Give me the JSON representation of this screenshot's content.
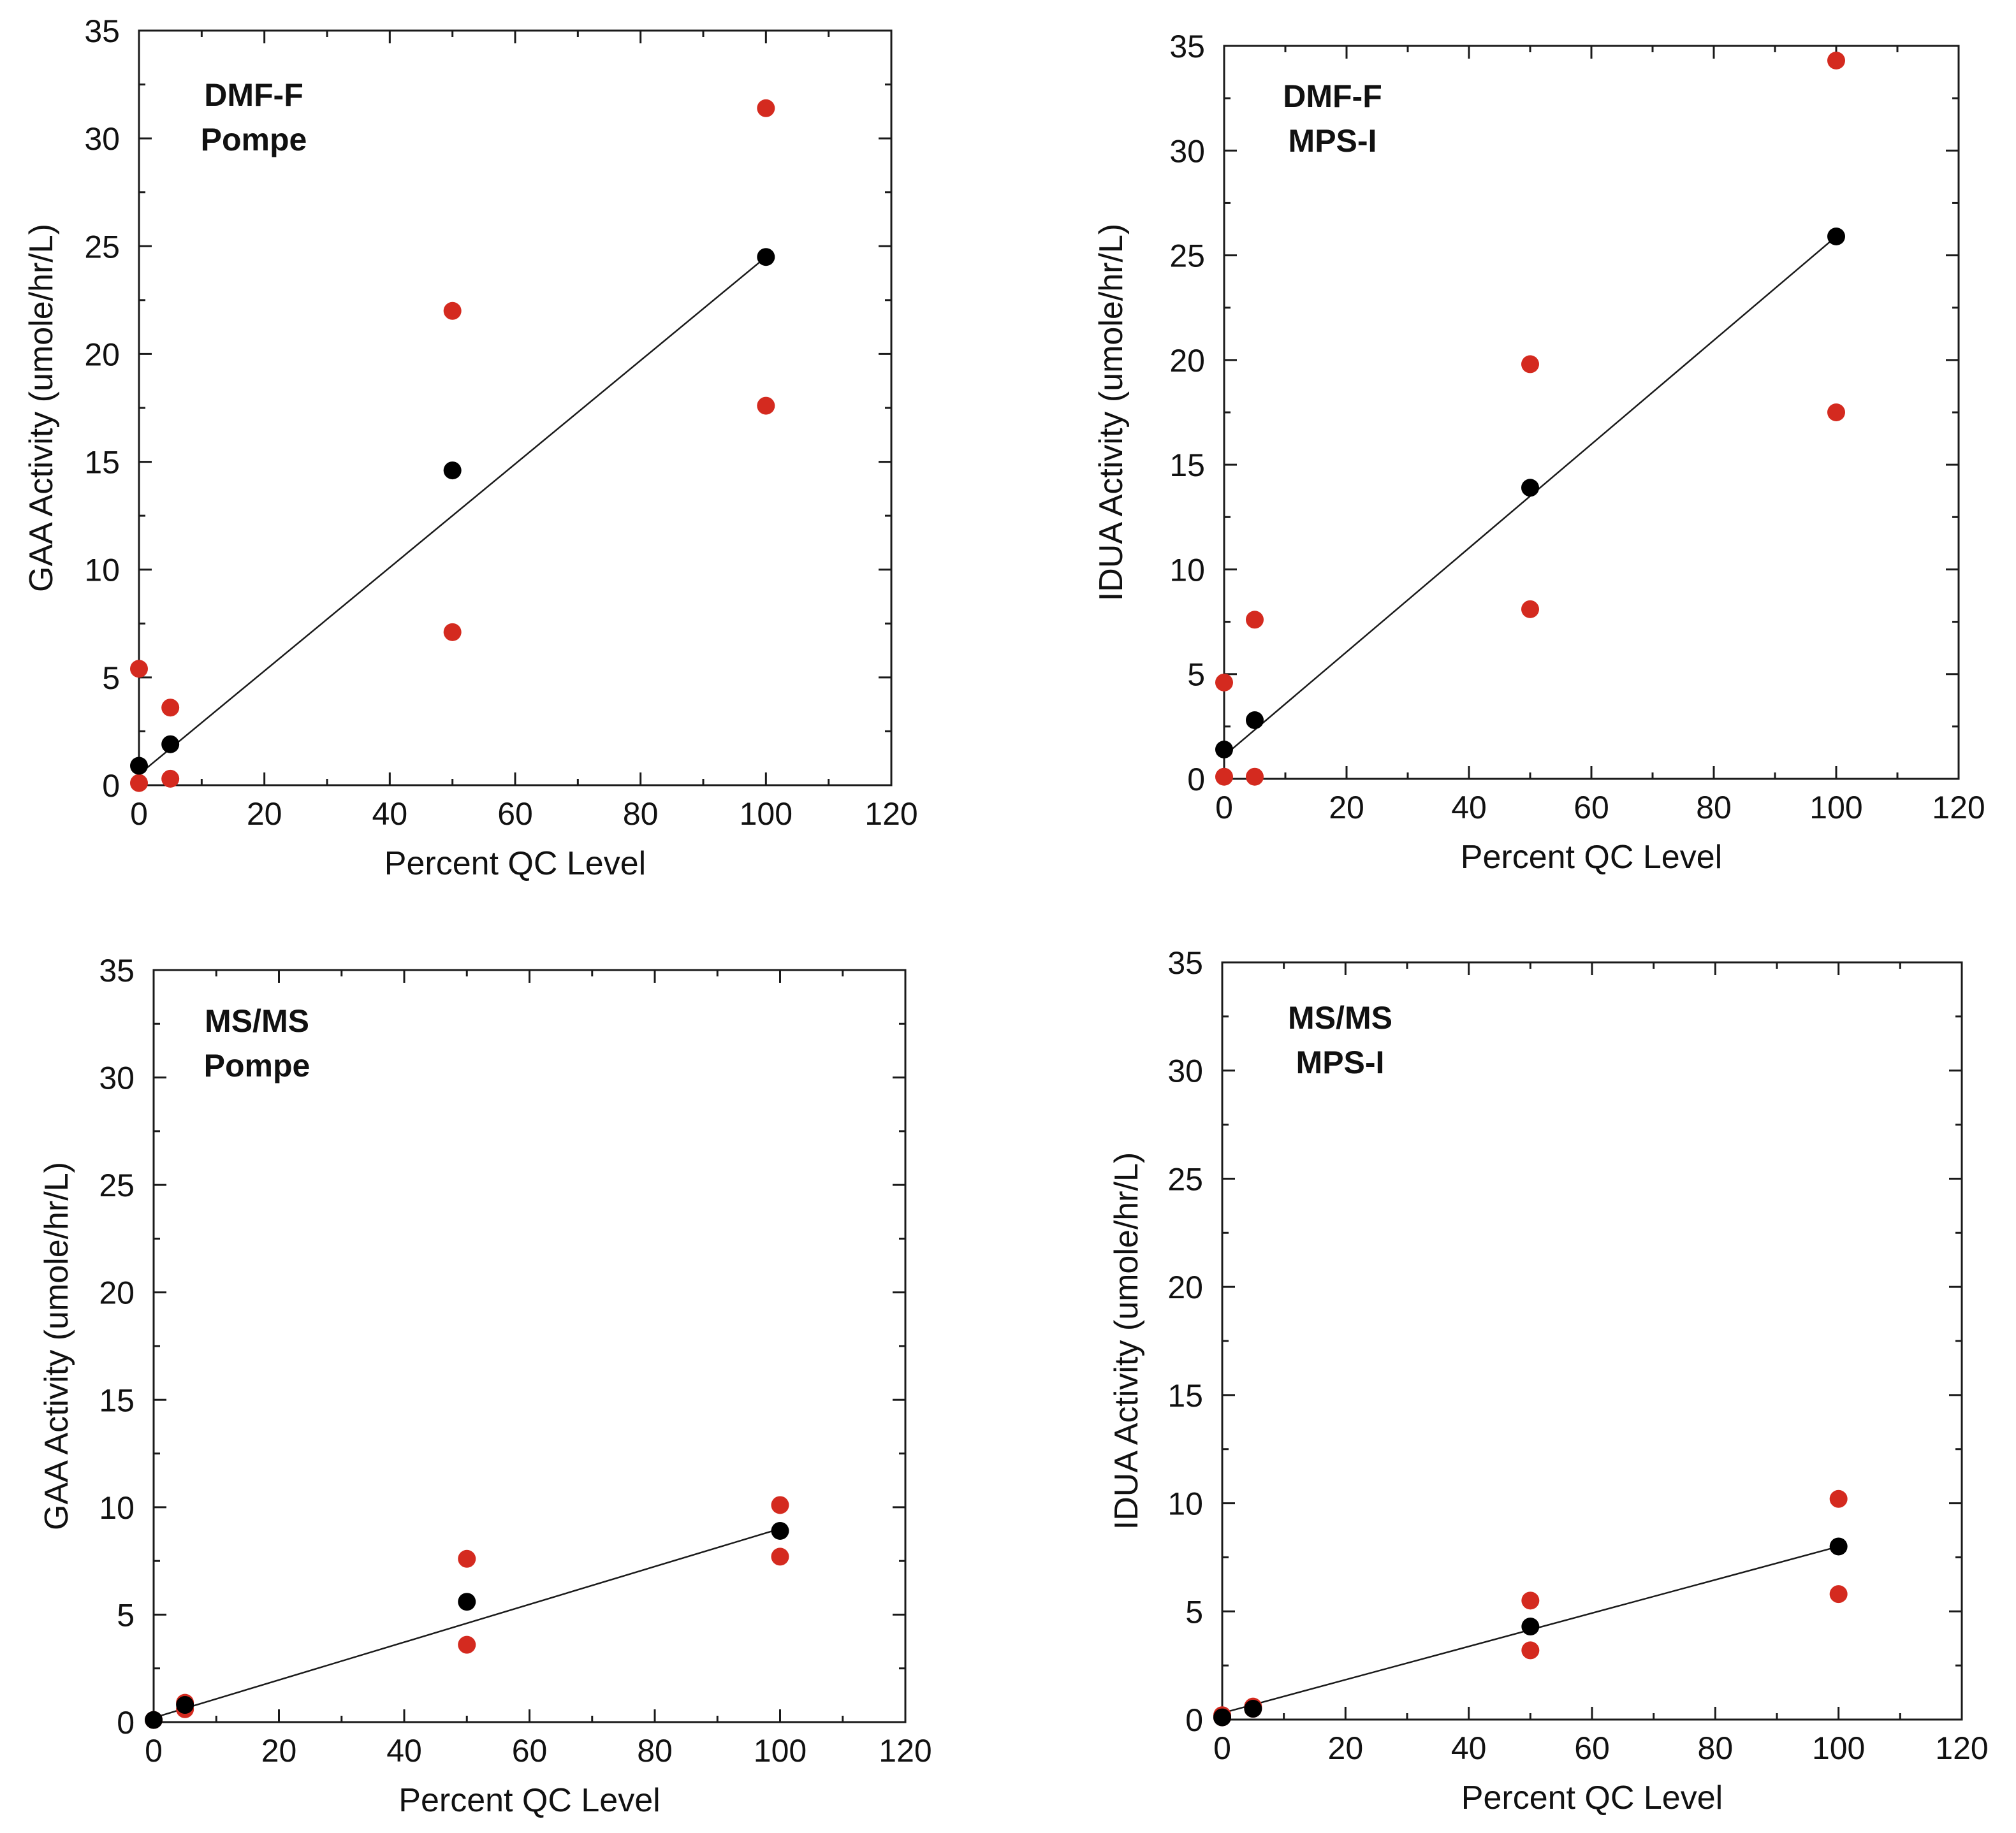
{
  "chart_data": [
    {
      "type": "scatter",
      "panel_label": [
        "DMF-F",
        "Pompe"
      ],
      "xlabel": "Percent QC Level",
      "ylabel": "GAA Activity (umole/hr/L)",
      "xlim": [
        0,
        120
      ],
      "ylim": [
        0,
        35
      ],
      "xticks": [
        "0",
        "20",
        "40",
        "60",
        "80",
        "100",
        "120"
      ],
      "yticks": [
        "0",
        "5",
        "10",
        "15",
        "20",
        "25",
        "30",
        "35"
      ],
      "grid": false,
      "series": [
        {
          "color": "#d42a1f",
          "points": [
            [
              0,
              5.4
            ],
            [
              0,
              0.1
            ],
            [
              5,
              3.6
            ],
            [
              5,
              0.3
            ],
            [
              50,
              22.0
            ],
            [
              50,
              7.1
            ],
            [
              100,
              31.4
            ],
            [
              100,
              17.6
            ]
          ]
        },
        {
          "color": "#000000",
          "points": [
            [
              0,
              0.9
            ],
            [
              5,
              1.9
            ],
            [
              50,
              14.6
            ],
            [
              100,
              24.5
            ]
          ]
        }
      ],
      "fit_line": [
        [
          0,
          0.5
        ],
        [
          100,
          24.5
        ]
      ]
    },
    {
      "type": "scatter",
      "panel_label": [
        "DMF-F",
        "MPS-I"
      ],
      "xlabel": "Percent QC Level",
      "ylabel": "IDUA Activity (umole/hr/L)",
      "xlim": [
        0,
        120
      ],
      "ylim": [
        0,
        35
      ],
      "xticks": [
        "0",
        "20",
        "40",
        "60",
        "80",
        "100",
        "120"
      ],
      "yticks": [
        "0",
        "5",
        "10",
        "15",
        "20",
        "25",
        "30",
        "35"
      ],
      "grid": false,
      "series": [
        {
          "color": "#d42a1f",
          "points": [
            [
              0,
              4.6
            ],
            [
              0,
              0.1
            ],
            [
              5,
              7.6
            ],
            [
              5,
              0.1
            ],
            [
              50,
              19.8
            ],
            [
              50,
              8.1
            ],
            [
              100,
              34.3
            ],
            [
              100,
              17.5
            ]
          ]
        },
        {
          "color": "#000000",
          "points": [
            [
              0,
              1.4
            ],
            [
              5,
              2.8
            ],
            [
              50,
              13.9
            ],
            [
              100,
              25.9
            ]
          ]
        }
      ],
      "fit_line": [
        [
          0,
          1.1
        ],
        [
          100,
          25.9
        ]
      ]
    },
    {
      "type": "scatter",
      "panel_label": [
        "MS/MS",
        "Pompe"
      ],
      "xlabel": "Percent QC Level",
      "ylabel": "GAA Activity (umole/hr/L)",
      "xlim": [
        0,
        120
      ],
      "ylim": [
        0,
        35
      ],
      "xticks": [
        "0",
        "20",
        "40",
        "60",
        "80",
        "100",
        "120"
      ],
      "yticks": [
        "0",
        "5",
        "10",
        "15",
        "20",
        "25",
        "30",
        "35"
      ],
      "grid": false,
      "series": [
        {
          "color": "#d42a1f",
          "points": [
            [
              0,
              0.1
            ],
            [
              5,
              0.9
            ],
            [
              5,
              0.6
            ],
            [
              50,
              7.6
            ],
            [
              50,
              3.6
            ],
            [
              100,
              10.1
            ],
            [
              100,
              7.7
            ]
          ]
        },
        {
          "color": "#000000",
          "points": [
            [
              0,
              0.1
            ],
            [
              5,
              0.8
            ],
            [
              50,
              5.6
            ],
            [
              100,
              8.9
            ]
          ]
        }
      ],
      "fit_line": [
        [
          0,
          0.2
        ],
        [
          100,
          9.0
        ]
      ]
    },
    {
      "type": "scatter",
      "panel_label": [
        "MS/MS",
        "MPS-I"
      ],
      "xlabel": "Percent QC Level",
      "ylabel": "IDUA Activity (umole/hr/L)",
      "xlim": [
        0,
        120
      ],
      "ylim": [
        0,
        35
      ],
      "xticks": [
        "0",
        "20",
        "40",
        "60",
        "80",
        "100",
        "120"
      ],
      "yticks": [
        "0",
        "5",
        "10",
        "15",
        "20",
        "25",
        "30",
        "35"
      ],
      "grid": false,
      "series": [
        {
          "color": "#d42a1f",
          "points": [
            [
              0,
              0.1
            ],
            [
              0,
              0.2
            ],
            [
              5,
              0.5
            ],
            [
              5,
              0.6
            ],
            [
              50,
              5.5
            ],
            [
              50,
              3.2
            ],
            [
              100,
              10.2
            ],
            [
              100,
              5.8
            ]
          ]
        },
        {
          "color": "#000000",
          "points": [
            [
              0,
              0.1
            ],
            [
              5,
              0.5
            ],
            [
              50,
              4.3
            ],
            [
              100,
              8.0
            ]
          ]
        }
      ],
      "fit_line": [
        [
          0,
          0.3
        ],
        [
          100,
          8.0
        ]
      ]
    }
  ]
}
